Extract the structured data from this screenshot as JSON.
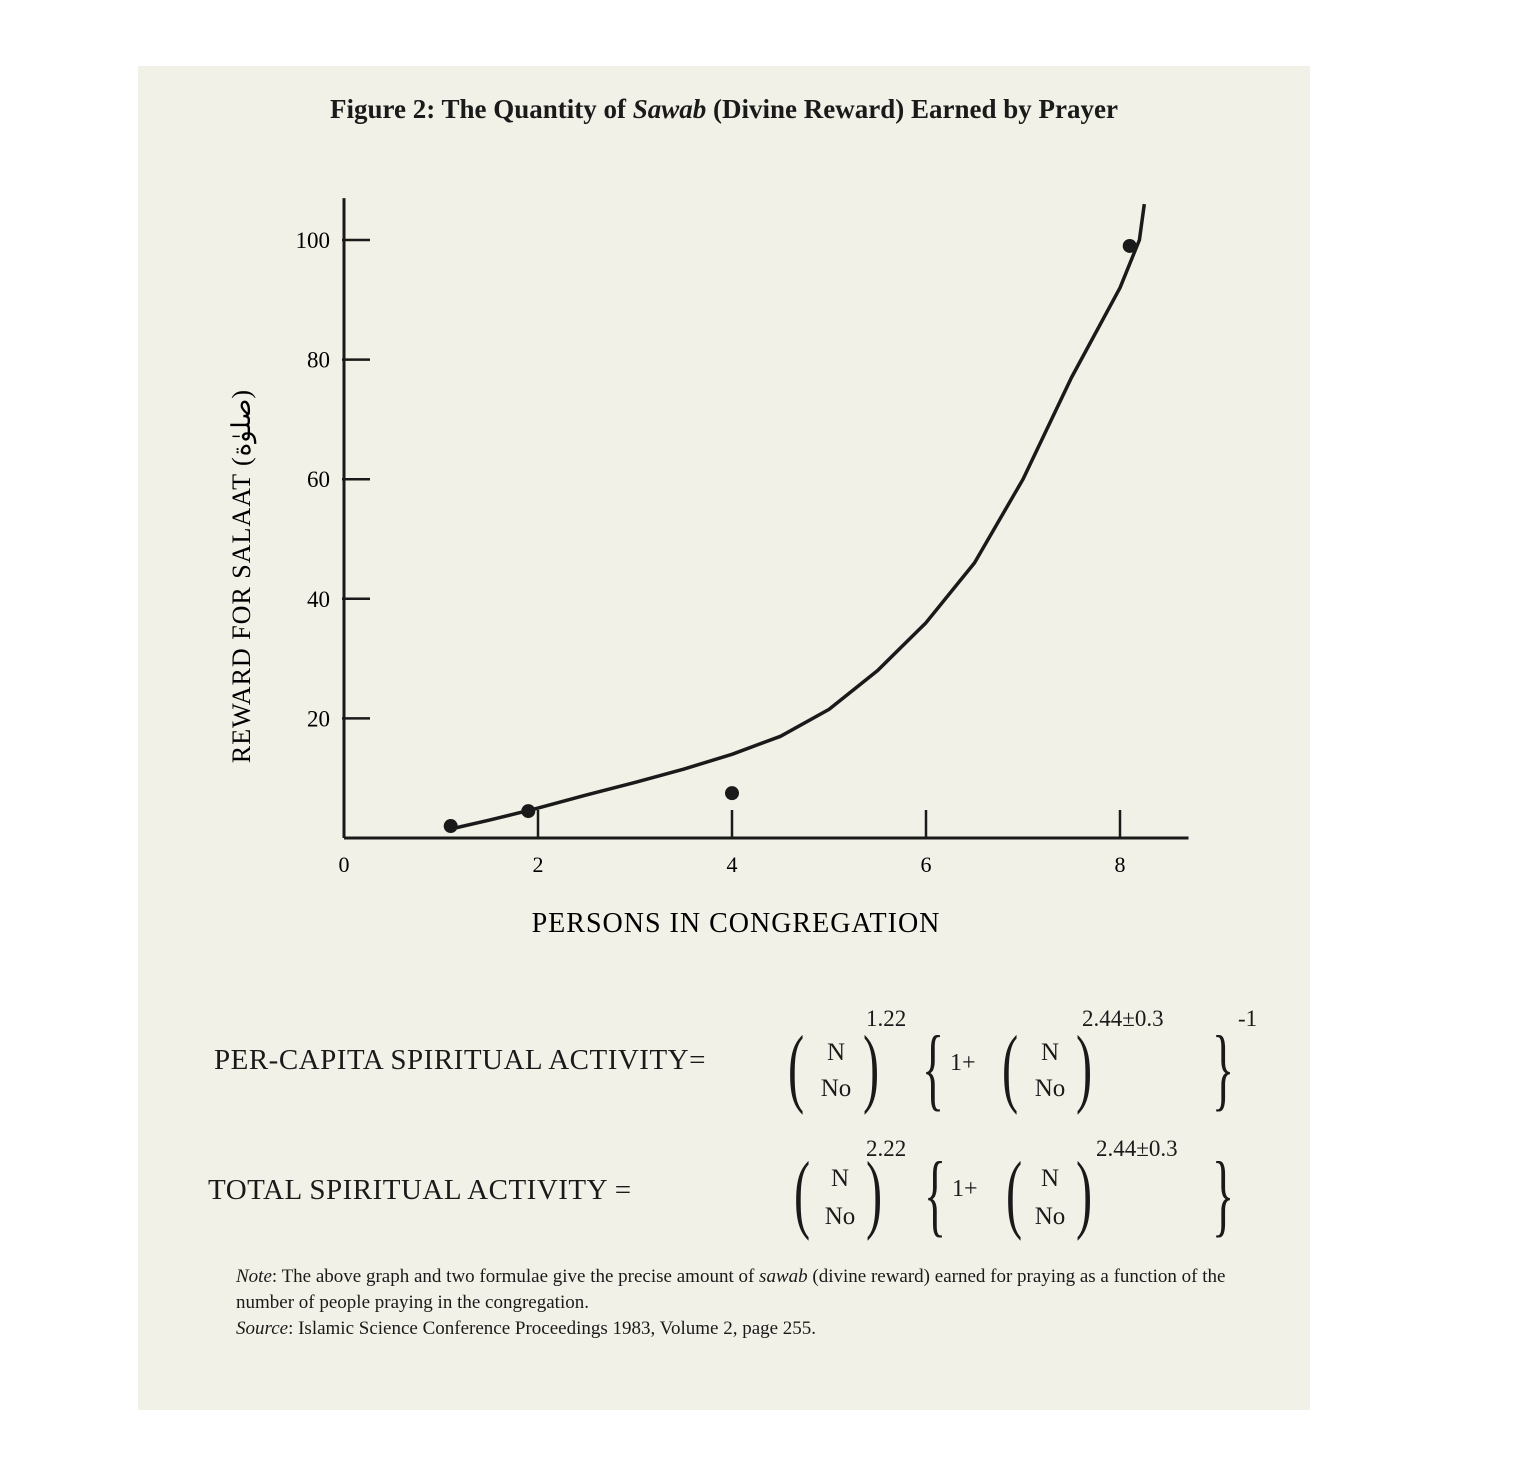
{
  "figure_title_prefix": "Figure 2: The Quantity of ",
  "figure_title_italic": "Sawab",
  "figure_title_suffix": " (Divine Reward) Earned by Prayer",
  "chart_data": {
    "type": "line",
    "xlabel": "PERSONS IN CONGREGATION",
    "ylabel": "REWARD FOR SALAAT (صلوٰة)",
    "xlim": [
      0,
      8.5
    ],
    "ylim": [
      0,
      107
    ],
    "x_ticks": [
      0,
      2,
      4,
      6,
      8
    ],
    "y_ticks": [
      20,
      40,
      60,
      80,
      100
    ],
    "grid": false,
    "series": [
      {
        "curve": {
          "x": [
            1.1,
            1.5,
            2.0,
            2.5,
            3.0,
            3.5,
            4.0,
            4.5,
            5.0,
            5.5,
            6.0,
            6.5,
            7.0,
            7.5,
            8.0,
            8.2,
            8.25
          ],
          "y": [
            1.5,
            3.0,
            5.0,
            7.2,
            9.3,
            11.5,
            14.0,
            17.0,
            21.5,
            28.0,
            36.0,
            46.0,
            60.0,
            77.0,
            92.0,
            100.0,
            106.0
          ]
        },
        "points": {
          "x": [
            1.1,
            1.9,
            4.0,
            8.1
          ],
          "y": [
            2.0,
            4.5,
            7.5,
            99.0
          ]
        }
      }
    ]
  },
  "formula1": {
    "label": "PER-CAPITA SPIRITUAL ACTIVITY=",
    "num": "N",
    "den": "No",
    "exp1": "1.22",
    "one_plus": "1+",
    "exp2": "2.44±0.3",
    "outer_exp": "-1"
  },
  "formula2": {
    "label": "TOTAL SPIRITUAL ACTIVITY =",
    "num": "N",
    "den": "No",
    "exp1": "2.22",
    "one_plus": "1+",
    "exp2": "2.44±0.3"
  },
  "note": {
    "label": "Note",
    "text1": ": The above graph and two formulae give the precise amount of ",
    "italic": "sawab",
    "text2": " (divine reward) earned for praying as a function of the number of people praying in the congregation.",
    "source_label": "Source",
    "source_text": ": Islamic Science Conference Proceedings 1983, Volume 2, page 255."
  }
}
